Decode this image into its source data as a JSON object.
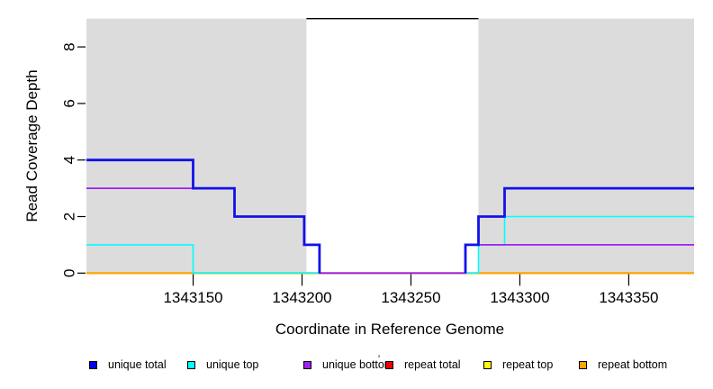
{
  "figure": {
    "stray_mark": "'"
  },
  "chart_data": {
    "type": "line",
    "subtype": "step-coverage",
    "title": "",
    "xlabel": "Coordinate in Reference Genome",
    "ylabel": "Read Coverage Depth",
    "xlim": [
      1343101,
      1343380
    ],
    "ylim": [
      0,
      9
    ],
    "x_ticks": [
      1343150,
      1343200,
      1343250,
      1343300,
      1343350
    ],
    "y_ticks": [
      0,
      2,
      4,
      6,
      8
    ],
    "grid": false,
    "background": {
      "color": "#dcdcdc",
      "regions": [
        {
          "name": "mappable-left",
          "x0": 1343101,
          "x1": 1343202,
          "y0": 0,
          "y1": 9
        },
        {
          "name": "mappable-right",
          "x0": 1343281,
          "x1": 1343380,
          "y0": 0,
          "y1": 9
        }
      ]
    },
    "gap_marker": {
      "x0": 1343202,
      "x1": 1343281,
      "y": 9,
      "color": "#000000"
    },
    "series": [
      {
        "name": "repeat total",
        "color": "#ee0000",
        "lwd": 1.8,
        "segments": [
          [
            [
              1343101,
              0
            ],
            [
              1343380,
              0
            ]
          ]
        ]
      },
      {
        "name": "repeat top",
        "color": "#ffff00",
        "lwd": 1.8,
        "segments": [
          [
            [
              1343101,
              0
            ],
            [
              1343380,
              0
            ]
          ]
        ]
      },
      {
        "name": "repeat bottom",
        "color": "#ffa500",
        "lwd": 1.8,
        "segments": [
          [
            [
              1343101,
              0
            ],
            [
              1343380,
              0
            ]
          ]
        ]
      },
      {
        "name": "unique top",
        "color": "#00ffff",
        "lwd": 1.6,
        "segments": [
          [
            [
              1343101,
              1
            ],
            [
              1343150,
              1
            ],
            [
              1343150,
              0
            ],
            [
              1343281,
              0
            ],
            [
              1343281,
              1
            ],
            [
              1343293,
              1
            ],
            [
              1343293,
              2
            ],
            [
              1343380,
              2
            ]
          ]
        ]
      },
      {
        "name": "unique bottom",
        "color": "#a020f0",
        "lwd": 1.8,
        "segments": [
          [
            [
              1343101,
              3
            ],
            [
              1343169,
              3
            ],
            [
              1343169,
              2
            ],
            [
              1343201,
              2
            ],
            [
              1343201,
              1
            ],
            [
              1343208,
              1
            ],
            [
              1343208,
              0
            ],
            [
              1343275,
              0
            ],
            [
              1343275,
              1
            ],
            [
              1343380,
              1
            ]
          ]
        ]
      },
      {
        "name": "unique total",
        "color": "#1212e8",
        "lwd": 2.8,
        "segments": [
          [
            [
              1343101,
              4
            ],
            [
              1343150,
              4
            ],
            [
              1343150,
              3
            ],
            [
              1343169,
              3
            ],
            [
              1343169,
              2
            ],
            [
              1343201,
              2
            ],
            [
              1343201,
              1
            ],
            [
              1343208,
              1
            ],
            [
              1343208,
              0
            ]
          ],
          [
            [
              1343275,
              0
            ],
            [
              1343275,
              1
            ],
            [
              1343281,
              1
            ],
            [
              1343281,
              2
            ],
            [
              1343293,
              2
            ],
            [
              1343293,
              3
            ],
            [
              1343380,
              3
            ]
          ]
        ]
      }
    ],
    "legend": {
      "position": "bottom",
      "items": [
        {
          "label": "unique total",
          "color": "#0000ee"
        },
        {
          "label": "unique top",
          "color": "#00ffff"
        },
        {
          "label": "unique bottom",
          "color": "#a020f0"
        },
        {
          "label": "repeat total",
          "color": "#ee0000"
        },
        {
          "label": "repeat top",
          "color": "#ffff00"
        },
        {
          "label": "repeat bottom",
          "color": "#ffa500"
        }
      ]
    }
  }
}
